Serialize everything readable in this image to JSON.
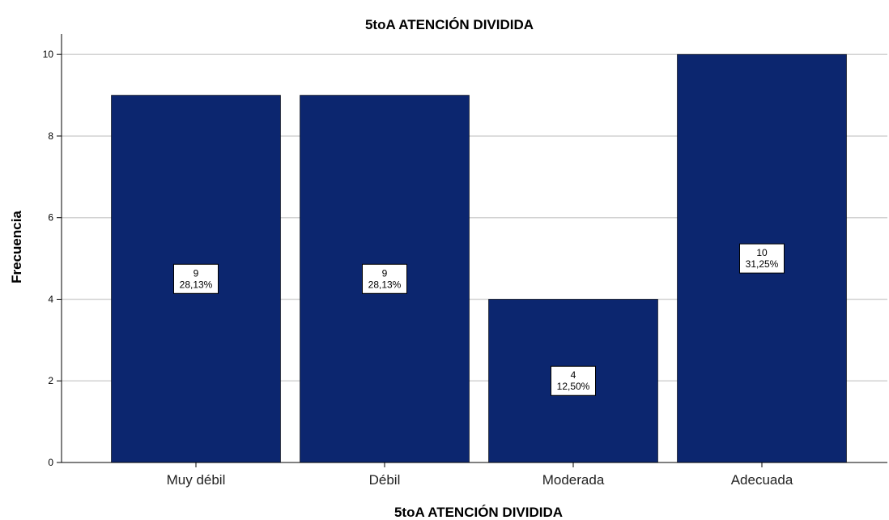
{
  "chart_data": {
    "type": "bar",
    "title": "5toA ATENCIÓN DIVIDIDA",
    "xlabel": "5toA ATENCIÓN DIVIDIDA",
    "ylabel": "Frecuencia",
    "categories": [
      "Muy débil",
      "Débil",
      "Moderada",
      "Adecuada"
    ],
    "values": [
      9,
      9,
      4,
      10
    ],
    "percent_labels": [
      "28,13%",
      "28,13%",
      "12,50%",
      "31,25%"
    ],
    "ylim": [
      0,
      10.5
    ],
    "yticks": [
      0,
      2,
      4,
      6,
      8,
      10
    ],
    "grid": true,
    "bar_color": "#0c266f"
  }
}
